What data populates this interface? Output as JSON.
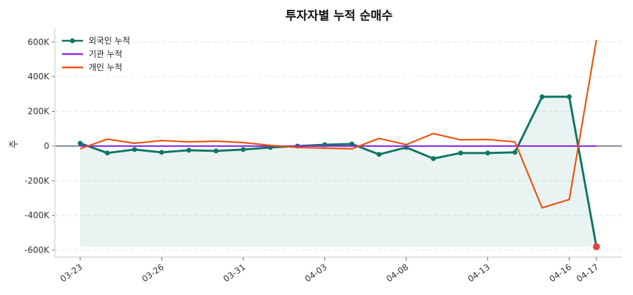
{
  "chart_data": {
    "type": "line",
    "title": "투자자별 누적 순매수",
    "xlabel": "",
    "ylabel": "주",
    "x": [
      "03-23",
      "03-24",
      "03-25",
      "03-26",
      "03-27",
      "03-30",
      "03-31",
      "04-01",
      "04-02",
      "04-03",
      "04-06",
      "04-07",
      "04-08",
      "04-09",
      "04-10",
      "04-13",
      "04-14",
      "04-15",
      "04-16",
      "04-17"
    ],
    "xtick_labels": [
      "03-23",
      "03-26",
      "03-31",
      "04-03",
      "04-08",
      "04-13",
      "04-16",
      "04-17"
    ],
    "ytick_labels": [
      "600K",
      "400K",
      "200K",
      "0",
      "-200K",
      "-400K",
      "-600K"
    ],
    "yticks": [
      600000,
      400000,
      200000,
      0,
      -200000,
      -400000,
      -600000
    ],
    "ylim": [
      -640000,
      680000
    ],
    "grid": "horizontal dashed",
    "legend_placement": "top-left",
    "series": [
      {
        "name": "외국인 누적",
        "color": "#0f7564",
        "markers": true,
        "fill": true,
        "values": [
          16000,
          -40000,
          -20000,
          -36000,
          -24000,
          -28000,
          -20000,
          -8000,
          0,
          8000,
          12000,
          -48000,
          -8000,
          -72000,
          -40000,
          -40000,
          -36000,
          284000,
          284000,
          -580000
        ]
      },
      {
        "name": "기관 누적",
        "color": "#8a2be2",
        "markers": false,
        "values": [
          0,
          0,
          0,
          0,
          0,
          0,
          0,
          0,
          0,
          0,
          0,
          0,
          0,
          0,
          0,
          0,
          0,
          0,
          0,
          0
        ]
      },
      {
        "name": "개인 누적",
        "color": "#e8540c",
        "markers": false,
        "values": [
          -16000,
          40000,
          16000,
          32000,
          24000,
          28000,
          20000,
          4000,
          -8000,
          -12000,
          -16000,
          44000,
          8000,
          72000,
          36000,
          38000,
          24000,
          -356000,
          -308000,
          612000
        ]
      }
    ],
    "highlight_last_point_color": "#e84040"
  }
}
